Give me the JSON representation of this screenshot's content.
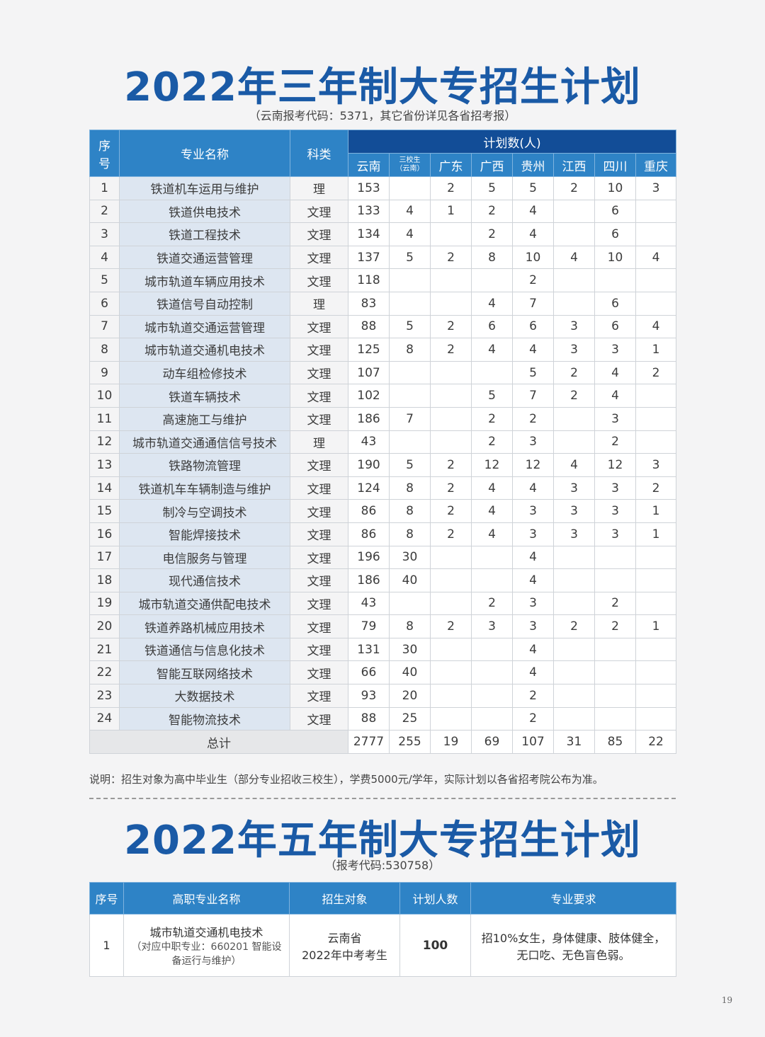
{
  "three_year": {
    "title": "2022年三年制大专招生计划",
    "subtitle": "（云南报考代码：5371，其它省份详见各省招考报）",
    "headers": {
      "index": "序号",
      "major": "专业名称",
      "category": "科类",
      "plan": "计划数(人)",
      "provinces": [
        "云南",
        "三校生\n（云南）",
        "广东",
        "广西",
        "贵州",
        "江西",
        "四川",
        "重庆"
      ]
    },
    "rows": [
      [
        "1",
        "铁道机车运用与维护",
        "理",
        "153",
        "",
        "2",
        "5",
        "5",
        "2",
        "10",
        "3"
      ],
      [
        "2",
        "铁道供电技术",
        "文理",
        "133",
        "4",
        "1",
        "2",
        "4",
        "",
        "6",
        ""
      ],
      [
        "3",
        "铁道工程技术",
        "文理",
        "134",
        "4",
        "",
        "2",
        "4",
        "",
        "6",
        ""
      ],
      [
        "4",
        "铁道交通运营管理",
        "文理",
        "137",
        "5",
        "2",
        "8",
        "10",
        "4",
        "10",
        "4"
      ],
      [
        "5",
        "城市轨道车辆应用技术",
        "文理",
        "118",
        "",
        "",
        "",
        "2",
        "",
        "",
        ""
      ],
      [
        "6",
        "铁道信号自动控制",
        "理",
        "83",
        "",
        "",
        "4",
        "7",
        "",
        "6",
        ""
      ],
      [
        "7",
        "城市轨道交通运营管理",
        "文理",
        "88",
        "5",
        "2",
        "6",
        "6",
        "3",
        "6",
        "4"
      ],
      [
        "8",
        "城市轨道交通机电技术",
        "文理",
        "125",
        "8",
        "2",
        "4",
        "4",
        "3",
        "3",
        "1"
      ],
      [
        "9",
        "动车组检修技术",
        "文理",
        "107",
        "",
        "",
        "",
        "5",
        "2",
        "4",
        "2"
      ],
      [
        "10",
        "铁道车辆技术",
        "文理",
        "102",
        "",
        "",
        "5",
        "7",
        "2",
        "4",
        ""
      ],
      [
        "11",
        "高速施工与维护",
        "文理",
        "186",
        "7",
        "",
        "2",
        "2",
        "",
        "3",
        ""
      ],
      [
        "12",
        "城市轨道交通通信信号技术",
        "理",
        "43",
        "",
        "",
        "2",
        "3",
        "",
        "2",
        ""
      ],
      [
        "13",
        "铁路物流管理",
        "文理",
        "190",
        "5",
        "2",
        "12",
        "12",
        "4",
        "12",
        "3"
      ],
      [
        "14",
        "铁道机车车辆制造与维护",
        "文理",
        "124",
        "8",
        "2",
        "4",
        "4",
        "3",
        "3",
        "2"
      ],
      [
        "15",
        "制冷与空调技术",
        "文理",
        "86",
        "8",
        "2",
        "4",
        "3",
        "3",
        "3",
        "1"
      ],
      [
        "16",
        "智能焊接技术",
        "文理",
        "86",
        "8",
        "2",
        "4",
        "3",
        "3",
        "3",
        "1"
      ],
      [
        "17",
        "电信服务与管理",
        "文理",
        "196",
        "30",
        "",
        "",
        "4",
        "",
        "",
        ""
      ],
      [
        "18",
        "现代通信技术",
        "文理",
        "186",
        "40",
        "",
        "",
        "4",
        "",
        "",
        ""
      ],
      [
        "19",
        "城市轨道交通供配电技术",
        "文理",
        "43",
        "",
        "",
        "2",
        "3",
        "",
        "2",
        ""
      ],
      [
        "20",
        "铁道养路机械应用技术",
        "文理",
        "79",
        "8",
        "2",
        "3",
        "3",
        "2",
        "2",
        "1"
      ],
      [
        "21",
        "铁道通信与信息化技术",
        "文理",
        "131",
        "30",
        "",
        "",
        "4",
        "",
        "",
        ""
      ],
      [
        "22",
        "智能互联网络技术",
        "文理",
        "66",
        "40",
        "",
        "",
        "4",
        "",
        "",
        ""
      ],
      [
        "23",
        "大数据技术",
        "文理",
        "93",
        "20",
        "",
        "",
        "2",
        "",
        "",
        ""
      ],
      [
        "24",
        "智能物流技术",
        "文理",
        "88",
        "25",
        "",
        "",
        "2",
        "",
        "",
        ""
      ]
    ],
    "total_label": "总计",
    "totals": [
      "2777",
      "255",
      "19",
      "69",
      "107",
      "31",
      "85",
      "22"
    ],
    "note": "说明：招生对象为高中毕业生（部分专业招收三校生），学费5000元/学年，实际计划以各省招考院公布为准。"
  },
  "five_year": {
    "title": "2022年五年制大专招生计划",
    "subtitle": "（报考代码:530758）",
    "headers": [
      "序号",
      "高职专业名称",
      "招生对象",
      "计划人数",
      "专业要求"
    ],
    "row": {
      "index": "1",
      "major": "城市轨道交通机电技术",
      "major_note": "（对应中职专业：660201 智能设备运行与维护）",
      "target_line1": "云南省",
      "target_line2": "2022年中考考生",
      "count": "100",
      "req_line1": "招10%女生，身体健康、肢体健全，",
      "req_line2": "无口吃、无色盲色弱。"
    }
  },
  "page_number": "19",
  "colors": {
    "title": "#1a5aa6",
    "header_dark": "#124d97",
    "header": "#2e83c6",
    "name_col": "#dde6f1"
  }
}
